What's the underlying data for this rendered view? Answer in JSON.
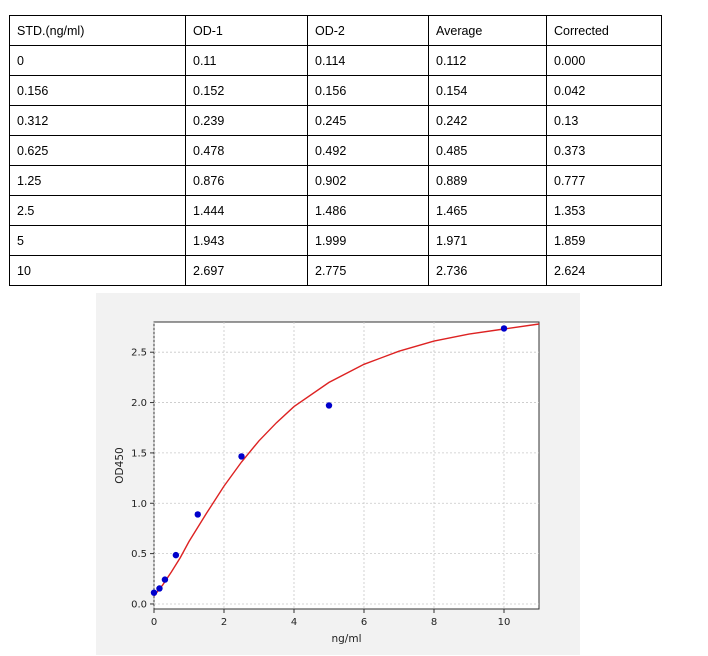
{
  "table": {
    "headers": [
      "STD.(ng/ml)",
      "OD-1",
      "OD-2",
      "Average",
      "Corrected"
    ],
    "rows": [
      [
        "0",
        "0.11",
        "0.114",
        "0.112",
        "0.000"
      ],
      [
        "0.156",
        "0.152",
        "0.156",
        "0.154",
        "0.042"
      ],
      [
        "0.312",
        "0.239",
        "0.245",
        "0.242",
        "0.13"
      ],
      [
        "0.625",
        "0.478",
        "0.492",
        "0.485",
        "0.373"
      ],
      [
        "1.25",
        "0.876",
        "0.902",
        "0.889",
        "0.777"
      ],
      [
        "2.5",
        "1.444",
        "1.486",
        "1.465",
        "1.353"
      ],
      [
        "5",
        "1.943",
        "1.999",
        "1.971",
        "1.859"
      ],
      [
        "10",
        "2.697",
        "2.775",
        "2.736",
        "2.624"
      ]
    ]
  },
  "chart_data": {
    "type": "scatter",
    "title": "",
    "xlabel": "ng/ml",
    "ylabel": "OD450",
    "xlim": [
      0,
      11
    ],
    "ylim": [
      -0.05,
      2.8
    ],
    "xticks": [
      0,
      2,
      4,
      6,
      8,
      10
    ],
    "yticks": [
      0.0,
      0.5,
      1.0,
      1.5,
      2.0,
      2.5
    ],
    "ytick_labels": [
      "0.0",
      "0.5",
      "1.0",
      "1.5",
      "2.0",
      "2.5"
    ],
    "grid": true,
    "series": [
      {
        "kind": "points",
        "x": [
          0,
          0.156,
          0.312,
          0.625,
          1.25,
          2.5,
          5,
          10
        ],
        "y": [
          0.112,
          0.154,
          0.242,
          0.485,
          0.889,
          1.465,
          1.971,
          2.736
        ],
        "color": "#0000cc"
      },
      {
        "kind": "fitted-curve",
        "x": [
          0,
          0.25,
          0.5,
          0.75,
          1,
          1.5,
          2,
          2.5,
          3,
          3.5,
          4,
          5,
          6,
          7,
          8,
          9,
          10,
          11
        ],
        "y": [
          0.08,
          0.19,
          0.32,
          0.46,
          0.62,
          0.9,
          1.17,
          1.41,
          1.62,
          1.8,
          1.96,
          2.2,
          2.38,
          2.51,
          2.61,
          2.68,
          2.73,
          2.78
        ],
        "color": "#dd2222"
      }
    ],
    "colors": {
      "panel_bg": "#f2f2f2",
      "plot_bg": "#ffffff",
      "grid": "#c8c8c8",
      "axis": "#333333"
    }
  }
}
